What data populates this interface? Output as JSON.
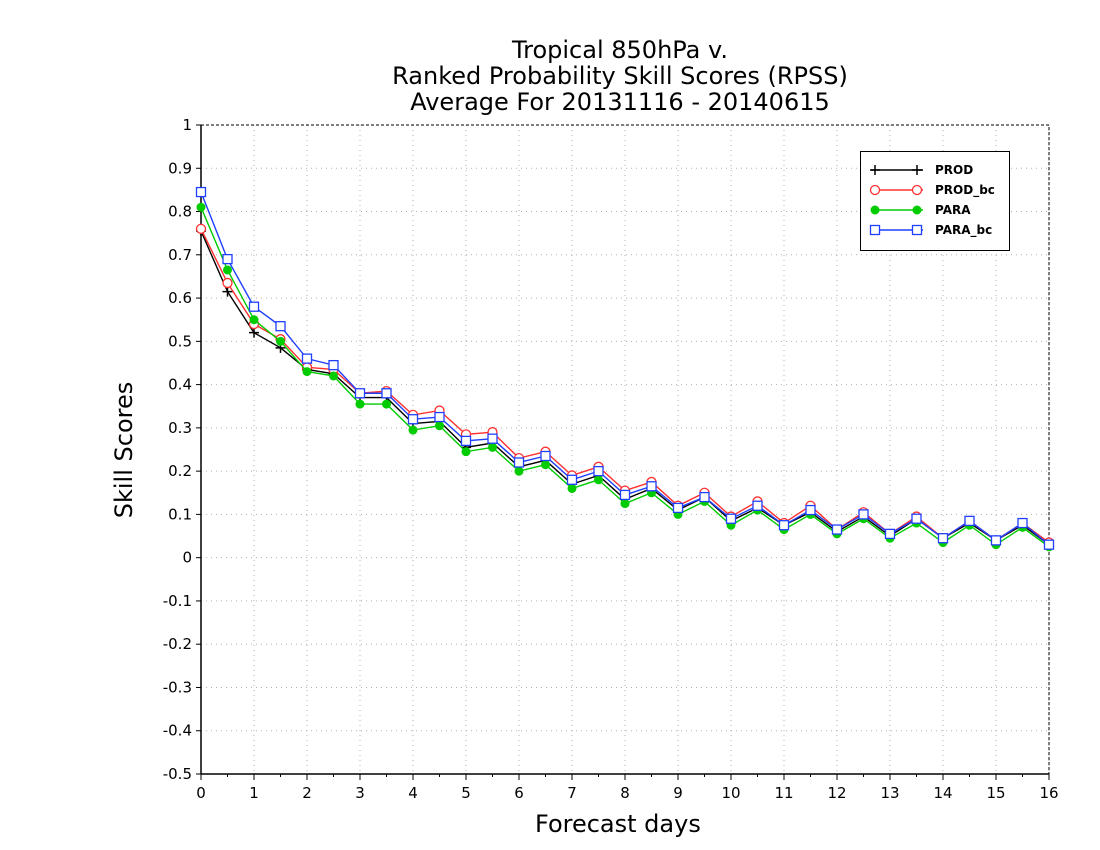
{
  "chart_data": {
    "type": "line",
    "title": [
      "Tropical 850hPa v.",
      "Ranked Probability Skill Scores (RPSS)",
      "Average For 20131116 - 20140615"
    ],
    "xlabel": "Forecast days",
    "ylabel": "Skill Scores",
    "xlim": [
      0,
      16
    ],
    "ylim": [
      -0.5,
      1
    ],
    "xticks": [
      "0",
      "1",
      "2",
      "3",
      "4",
      "5",
      "6",
      "7",
      "8",
      "9",
      "10",
      "11",
      "12",
      "13",
      "14",
      "15",
      "16"
    ],
    "yticks": [
      "-0.5",
      "-0.4",
      "-0.3",
      "-0.2",
      "-0.1",
      "0",
      "0.1",
      "0.2",
      "0.3",
      "0.4",
      "0.5",
      "0.6",
      "0.7",
      "0.8",
      "0.9",
      "1"
    ],
    "grid": true,
    "legend_position": "top-right",
    "x": [
      0,
      0.5,
      1,
      1.5,
      2,
      2.5,
      3,
      3.5,
      4,
      4.5,
      5,
      5.5,
      6,
      6.5,
      7,
      7.5,
      8,
      8.5,
      9,
      9.5,
      10,
      10.5,
      11,
      11.5,
      12,
      12.5,
      13,
      13.5,
      14,
      14.5,
      15,
      15.5,
      16
    ],
    "series": [
      {
        "name": "PROD",
        "color": "#000000",
        "marker": "plus",
        "values": [
          0.755,
          0.615,
          0.52,
          0.485,
          0.435,
          0.425,
          0.37,
          0.37,
          0.31,
          0.315,
          0.255,
          0.265,
          0.21,
          0.225,
          0.17,
          0.19,
          0.135,
          0.16,
          0.11,
          0.14,
          0.085,
          0.115,
          0.075,
          0.105,
          0.06,
          0.095,
          0.05,
          0.09,
          0.045,
          0.08,
          0.04,
          0.075,
          0.03
        ]
      },
      {
        "name": "PROD_bc",
        "color": "#ff3030",
        "marker": "open-circle",
        "values": [
          0.76,
          0.635,
          0.54,
          0.505,
          0.44,
          0.435,
          0.38,
          0.385,
          0.33,
          0.34,
          0.285,
          0.29,
          0.23,
          0.245,
          0.19,
          0.21,
          0.155,
          0.175,
          0.12,
          0.15,
          0.095,
          0.13,
          0.08,
          0.12,
          0.065,
          0.105,
          0.055,
          0.095,
          0.045,
          0.085,
          0.04,
          0.08,
          0.035
        ]
      },
      {
        "name": "PARA",
        "color": "#00cc00",
        "marker": "filled-circle",
        "values": [
          0.81,
          0.665,
          0.55,
          0.5,
          0.43,
          0.42,
          0.355,
          0.355,
          0.295,
          0.305,
          0.245,
          0.255,
          0.2,
          0.215,
          0.16,
          0.18,
          0.125,
          0.15,
          0.1,
          0.13,
          0.075,
          0.11,
          0.065,
          0.1,
          0.055,
          0.09,
          0.045,
          0.08,
          0.035,
          0.075,
          0.03,
          0.07,
          0.025
        ]
      },
      {
        "name": "PARA_bc",
        "color": "#2040ff",
        "marker": "open-square",
        "values": [
          0.845,
          0.69,
          0.58,
          0.535,
          0.46,
          0.445,
          0.38,
          0.38,
          0.32,
          0.325,
          0.27,
          0.275,
          0.22,
          0.235,
          0.18,
          0.2,
          0.145,
          0.165,
          0.115,
          0.14,
          0.09,
          0.12,
          0.075,
          0.11,
          0.065,
          0.1,
          0.055,
          0.09,
          0.045,
          0.085,
          0.04,
          0.08,
          0.03
        ]
      }
    ]
  }
}
